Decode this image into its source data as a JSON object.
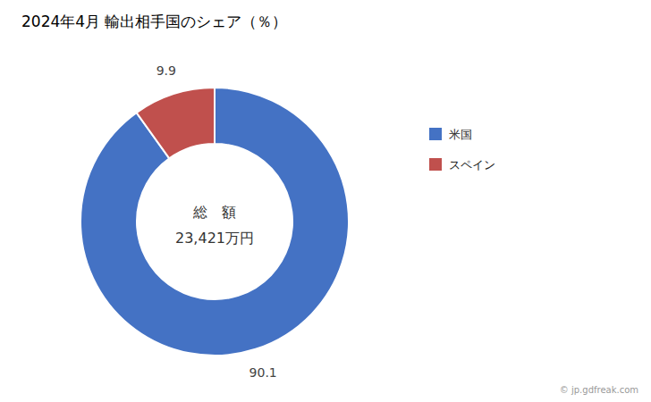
{
  "chart_data": {
    "type": "donut",
    "title": "2024年4月 輸出相手国のシェア（％）",
    "categories": [
      "米国",
      "スペイン"
    ],
    "values": [
      90.1,
      9.9
    ],
    "colors": [
      "#4472C4",
      "#C0504D"
    ],
    "data_labels": true,
    "legend": "right",
    "annotations": [
      "総　額",
      "23,421万円",
      "© jp.gdfreak.com"
    ]
  }
}
